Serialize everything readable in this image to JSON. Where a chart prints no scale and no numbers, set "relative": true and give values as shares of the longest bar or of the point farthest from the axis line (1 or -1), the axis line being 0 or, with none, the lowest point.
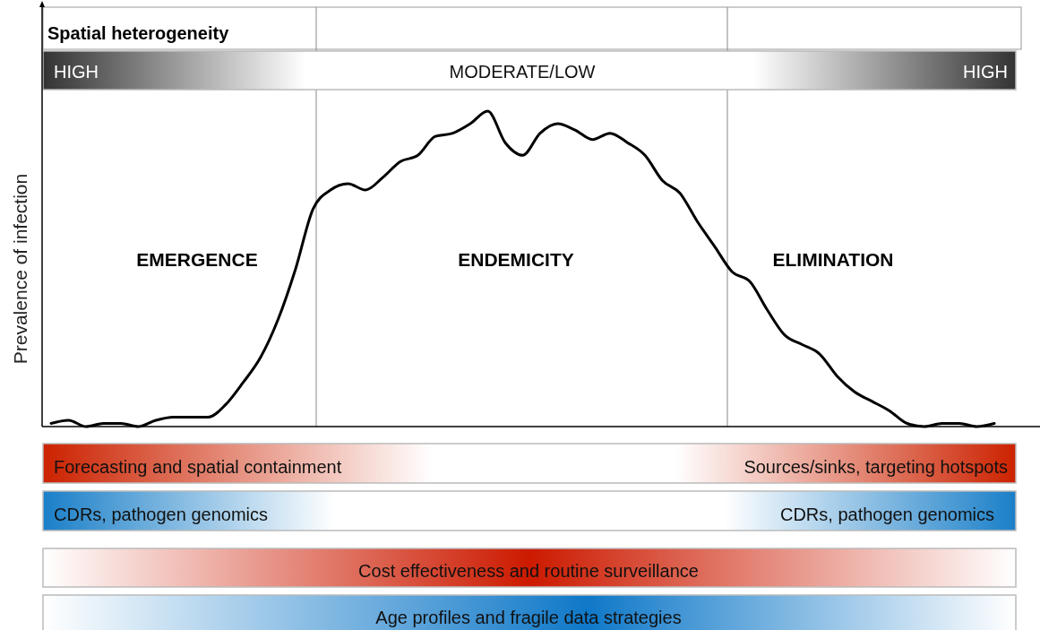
{
  "chart_data": {
    "type": "line",
    "relative": true,
    "ylabel": "Prevalence of infection",
    "categories": [
      null,
      null,
      null,
      null,
      null,
      null,
      null,
      null,
      null,
      null,
      null,
      null,
      null,
      null,
      null,
      null,
      null,
      null,
      null,
      null,
      null,
      null,
      null,
      null,
      null,
      null,
      null,
      null,
      null,
      null,
      null,
      null,
      null,
      null,
      null,
      null,
      null,
      null,
      null,
      null,
      null,
      null,
      null,
      null,
      null,
      null,
      null,
      null,
      null,
      null,
      null,
      null,
      null,
      null,
      null
    ],
    "series": [
      {
        "color": "#000000",
        "values": [
          0.01,
          0.02,
          0,
          0.01,
          0.01,
          0,
          0.02,
          0.03,
          0.03,
          0.03,
          0.07,
          0.14,
          0.22,
          0.34,
          0.5,
          0.69,
          0.75,
          0.77,
          0.75,
          0.79,
          0.84,
          0.86,
          0.92,
          0.93,
          0.96,
          1,
          0.9,
          0.86,
          0.93,
          0.96,
          0.94,
          0.91,
          0.93,
          0.9,
          0.86,
          0.78,
          0.74,
          0.65,
          0.57,
          0.49,
          0.46,
          0.37,
          0.29,
          0.26,
          0.23,
          0.16,
          0.11,
          0.08,
          0.05,
          0.01,
          0,
          0.01,
          0.01,
          0,
          0.01
        ]
      }
    ],
    "annotations": [
      "Spatial heterogeneity",
      "HIGH",
      "MODERATE/LOW",
      "HIGH",
      "EMERGENCE",
      "ENDEMICITY",
      "ELIMINATION",
      "Forecasting and spatial containment",
      "Sources/sinks, targeting hotspots",
      "CDRs, pathogen genomics",
      "CDRs, pathogen genomics",
      "Cost effectiveness and routine surveillance",
      "Age profiles and fragile data strategies"
    ]
  }
}
